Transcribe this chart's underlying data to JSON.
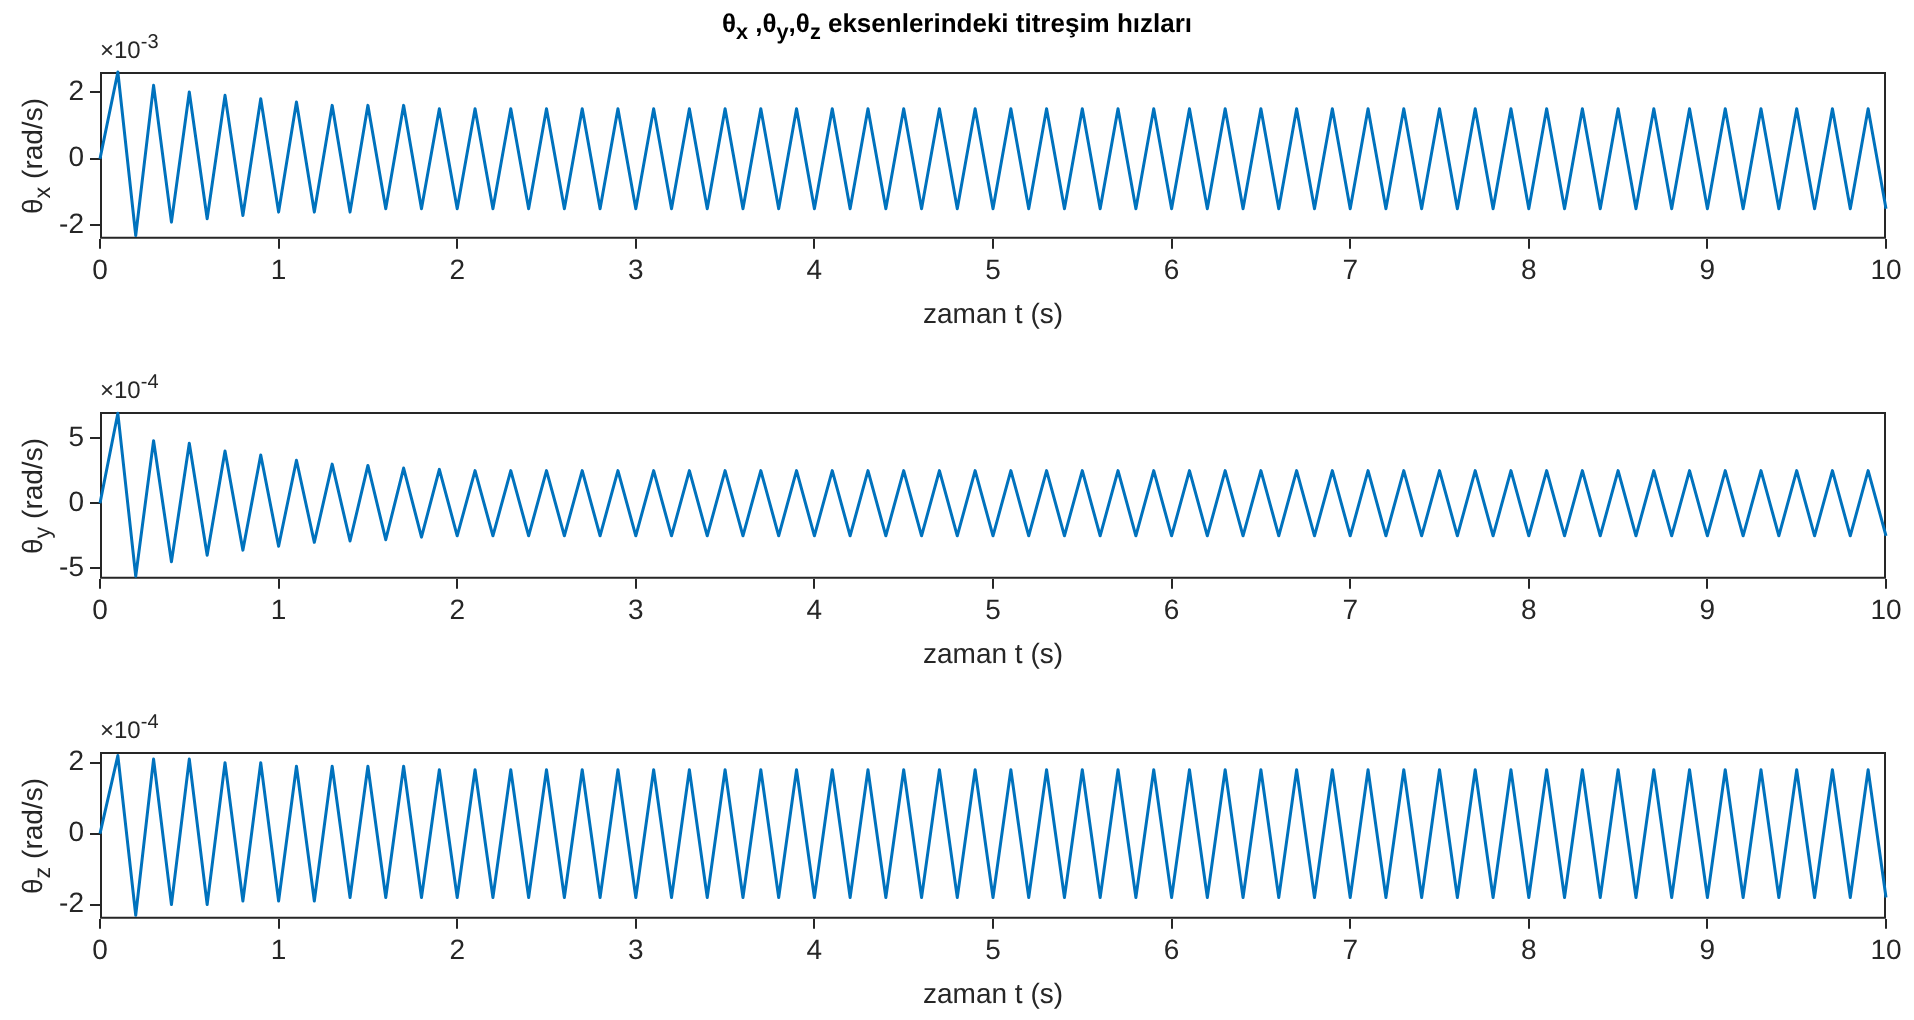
{
  "chart_data": [
    {
      "type": "line",
      "title": "θ$_{x}$ ,θ$_{y}$,θ$_{z}$ eksenlerindeki titreşim hızları",
      "xlabel": "zaman t (s)",
      "ylabel": "θ$_{x}$  (rad/s)",
      "annotations": [
        "×10$^{-3}$"
      ],
      "xlim": [
        0,
        10
      ],
      "xticks": [
        0,
        1,
        2,
        3,
        4,
        5,
        6,
        7,
        8,
        9,
        10
      ],
      "ylim": [
        -2.4,
        2.6
      ],
      "yticks": [
        -2,
        0,
        2
      ],
      "x": [
        0,
        0.1,
        0.2,
        0.3,
        0.4,
        0.5,
        0.6,
        0.7,
        0.8,
        0.9,
        1,
        1.1,
        1.2,
        1.3,
        1.4,
        1.5,
        1.6,
        1.7,
        1.8,
        1.9,
        2,
        2.1,
        2.2,
        2.3,
        2.4,
        2.5,
        2.6,
        2.7,
        2.8,
        2.9,
        3,
        3.1,
        3.2,
        3.3,
        3.4,
        3.5,
        3.6,
        3.7,
        3.8,
        3.9,
        4,
        4.1,
        4.2,
        4.3,
        4.4,
        4.5,
        4.6,
        4.7,
        4.8,
        4.9,
        5,
        5.1,
        5.2,
        5.3,
        5.4,
        5.5,
        5.6,
        5.7,
        5.8,
        5.9,
        6,
        6.1,
        6.2,
        6.3,
        6.4,
        6.5,
        6.6,
        6.7,
        6.8,
        6.9,
        7,
        7.1,
        7.2,
        7.3,
        7.4,
        7.5,
        7.6,
        7.7,
        7.8,
        7.9,
        8,
        8.1,
        8.2,
        8.3,
        8.4,
        8.5,
        8.6,
        8.7,
        8.8,
        8.9,
        9,
        9.1,
        9.2,
        9.3,
        9.4,
        9.5,
        9.6,
        9.7,
        9.8,
        9.9,
        10
      ],
      "series": [
        {
          "color": "#0072bd",
          "values": [
            0,
            2.6,
            -2.3,
            2.2,
            -1.9,
            2.0,
            -1.8,
            1.9,
            -1.7,
            1.8,
            -1.6,
            1.7,
            -1.6,
            1.6,
            -1.6,
            1.6,
            -1.5,
            1.6,
            -1.5,
            1.5,
            -1.5,
            1.5,
            -1.5,
            1.5,
            -1.5,
            1.5,
            -1.5,
            1.5,
            -1.5,
            1.5,
            -1.5,
            1.5,
            -1.5,
            1.5,
            -1.5,
            1.5,
            -1.5,
            1.5,
            -1.5,
            1.5,
            -1.5,
            1.5,
            -1.5,
            1.5,
            -1.5,
            1.5,
            -1.5,
            1.5,
            -1.5,
            1.5,
            -1.5,
            1.5,
            -1.5,
            1.5,
            -1.5,
            1.5,
            -1.5,
            1.5,
            -1.5,
            1.5,
            -1.5,
            1.5,
            -1.5,
            1.5,
            -1.5,
            1.5,
            -1.5,
            1.5,
            -1.5,
            1.5,
            -1.5,
            1.5,
            -1.5,
            1.5,
            -1.5,
            1.5,
            -1.5,
            1.5,
            -1.5,
            1.5,
            -1.5,
            1.5,
            -1.5,
            1.5,
            -1.5,
            1.5,
            -1.5,
            1.5,
            -1.5,
            1.5,
            -1.5,
            1.5,
            -1.5,
            1.5,
            -1.5,
            1.5,
            -1.5,
            1.5,
            -1.5,
            1.5,
            -1.5
          ]
        }
      ]
    },
    {
      "type": "line",
      "xlabel": "zaman t (s)",
      "ylabel": "θ$_{y}$  (rad/s)",
      "annotations": [
        "×10$^{-4}$"
      ],
      "xlim": [
        0,
        10
      ],
      "xticks": [
        0,
        1,
        2,
        3,
        4,
        5,
        6,
        7,
        8,
        9,
        10
      ],
      "ylim": [
        -5.8,
        7
      ],
      "yticks": [
        -5,
        0,
        5
      ],
      "x": [
        0,
        0.1,
        0.2,
        0.3,
        0.4,
        0.5,
        0.6,
        0.7,
        0.8,
        0.9,
        1,
        1.1,
        1.2,
        1.3,
        1.4,
        1.5,
        1.6,
        1.7,
        1.8,
        1.9,
        2,
        2.1,
        2.2,
        2.3,
        2.4,
        2.5,
        2.6,
        2.7,
        2.8,
        2.9,
        3,
        3.1,
        3.2,
        3.3,
        3.4,
        3.5,
        3.6,
        3.7,
        3.8,
        3.9,
        4,
        4.1,
        4.2,
        4.3,
        4.4,
        4.5,
        4.6,
        4.7,
        4.8,
        4.9,
        5,
        5.1,
        5.2,
        5.3,
        5.4,
        5.5,
        5.6,
        5.7,
        5.8,
        5.9,
        6,
        6.1,
        6.2,
        6.3,
        6.4,
        6.5,
        6.6,
        6.7,
        6.8,
        6.9,
        7,
        7.1,
        7.2,
        7.3,
        7.4,
        7.5,
        7.6,
        7.7,
        7.8,
        7.9,
        8,
        8.1,
        8.2,
        8.3,
        8.4,
        8.5,
        8.6,
        8.7,
        8.8,
        8.9,
        9,
        9.1,
        9.2,
        9.3,
        9.4,
        9.5,
        9.6,
        9.7,
        9.8,
        9.9,
        10
      ],
      "series": [
        {
          "color": "#0072bd",
          "values": [
            0,
            6.9,
            -5.6,
            4.8,
            -4.5,
            4.6,
            -4.0,
            4.0,
            -3.6,
            3.7,
            -3.3,
            3.3,
            -3.0,
            3.0,
            -2.9,
            2.9,
            -2.8,
            2.7,
            -2.6,
            2.6,
            -2.5,
            2.5,
            -2.5,
            2.5,
            -2.5,
            2.5,
            -2.5,
            2.5,
            -2.5,
            2.5,
            -2.5,
            2.5,
            -2.5,
            2.5,
            -2.5,
            2.5,
            -2.5,
            2.5,
            -2.5,
            2.5,
            -2.5,
            2.5,
            -2.5,
            2.5,
            -2.5,
            2.5,
            -2.5,
            2.5,
            -2.5,
            2.5,
            -2.5,
            2.5,
            -2.5,
            2.5,
            -2.5,
            2.5,
            -2.5,
            2.5,
            -2.5,
            2.5,
            -2.5,
            2.5,
            -2.5,
            2.5,
            -2.5,
            2.5,
            -2.5,
            2.5,
            -2.5,
            2.5,
            -2.5,
            2.5,
            -2.5,
            2.5,
            -2.5,
            2.5,
            -2.5,
            2.5,
            -2.5,
            2.5,
            -2.5,
            2.5,
            -2.5,
            2.5,
            -2.5,
            2.5,
            -2.5,
            2.5,
            -2.5,
            2.5,
            -2.5,
            2.5,
            -2.5,
            2.5,
            -2.5,
            2.5,
            -2.5,
            2.5,
            -2.5,
            2.5,
            -2.5
          ]
        }
      ]
    },
    {
      "type": "line",
      "xlabel": "zaman t (s)",
      "ylabel": "θ$_{z}$  (rad/s)",
      "annotations": [
        "×10$^{-4}$"
      ],
      "xlim": [
        0,
        10
      ],
      "xticks": [
        0,
        1,
        2,
        3,
        4,
        5,
        6,
        7,
        8,
        9,
        10
      ],
      "ylim": [
        -2.4,
        2.3
      ],
      "yticks": [
        -2,
        0,
        2
      ],
      "x": [
        0,
        0.1,
        0.2,
        0.3,
        0.4,
        0.5,
        0.6,
        0.7,
        0.8,
        0.9,
        1,
        1.1,
        1.2,
        1.3,
        1.4,
        1.5,
        1.6,
        1.7,
        1.8,
        1.9,
        2,
        2.1,
        2.2,
        2.3,
        2.4,
        2.5,
        2.6,
        2.7,
        2.8,
        2.9,
        3,
        3.1,
        3.2,
        3.3,
        3.4,
        3.5,
        3.6,
        3.7,
        3.8,
        3.9,
        4,
        4.1,
        4.2,
        4.3,
        4.4,
        4.5,
        4.6,
        4.7,
        4.8,
        4.9,
        5,
        5.1,
        5.2,
        5.3,
        5.4,
        5.5,
        5.6,
        5.7,
        5.8,
        5.9,
        6,
        6.1,
        6.2,
        6.3,
        6.4,
        6.5,
        6.6,
        6.7,
        6.8,
        6.9,
        7,
        7.1,
        7.2,
        7.3,
        7.4,
        7.5,
        7.6,
        7.7,
        7.8,
        7.9,
        8,
        8.1,
        8.2,
        8.3,
        8.4,
        8.5,
        8.6,
        8.7,
        8.8,
        8.9,
        9,
        9.1,
        9.2,
        9.3,
        9.4,
        9.5,
        9.6,
        9.7,
        9.8,
        9.9,
        10
      ],
      "series": [
        {
          "color": "#0072bd",
          "values": [
            0,
            2.2,
            -2.3,
            2.1,
            -2.0,
            2.1,
            -2.0,
            2.0,
            -1.9,
            2.0,
            -1.9,
            1.9,
            -1.9,
            1.9,
            -1.8,
            1.9,
            -1.8,
            1.9,
            -1.8,
            1.8,
            -1.8,
            1.8,
            -1.8,
            1.8,
            -1.8,
            1.8,
            -1.8,
            1.8,
            -1.8,
            1.8,
            -1.8,
            1.8,
            -1.8,
            1.8,
            -1.8,
            1.8,
            -1.8,
            1.8,
            -1.8,
            1.8,
            -1.8,
            1.8,
            -1.8,
            1.8,
            -1.8,
            1.8,
            -1.8,
            1.8,
            -1.8,
            1.8,
            -1.8,
            1.8,
            -1.8,
            1.8,
            -1.8,
            1.8,
            -1.8,
            1.8,
            -1.8,
            1.8,
            -1.8,
            1.8,
            -1.8,
            1.8,
            -1.8,
            1.8,
            -1.8,
            1.8,
            -1.8,
            1.8,
            -1.8,
            1.8,
            -1.8,
            1.8,
            -1.8,
            1.8,
            -1.8,
            1.8,
            -1.8,
            1.8,
            -1.8,
            1.8,
            -1.8,
            1.8,
            -1.8,
            1.8,
            -1.8,
            1.8,
            -1.8,
            1.8,
            -1.8,
            1.8,
            -1.8,
            1.8,
            -1.8,
            1.8,
            -1.8,
            1.8,
            -1.8,
            1.8,
            -1.8
          ]
        }
      ]
    }
  ]
}
